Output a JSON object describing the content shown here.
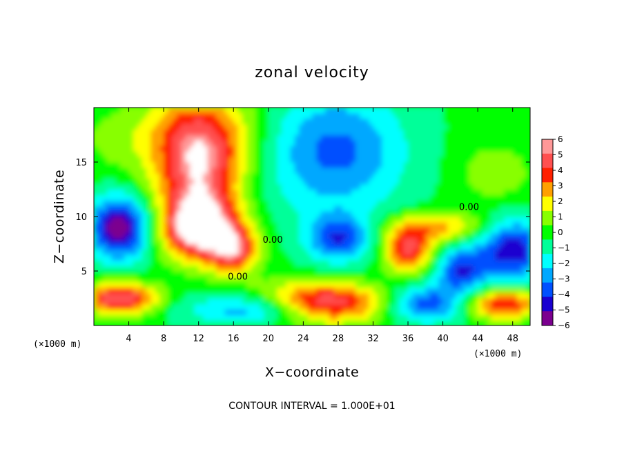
{
  "chart_data": {
    "type": "heatmap",
    "title": "zonal velocity",
    "xlabel": "X−coordinate",
    "ylabel": "Z−coordinate",
    "x_unit_left": "(×1000 m)",
    "x_unit_right": "(×1000 m)",
    "xlim": [
      0,
      50
    ],
    "ylim": [
      0,
      20
    ],
    "x_ticks": [
      4,
      8,
      12,
      16,
      20,
      24,
      28,
      32,
      36,
      40,
      44,
      48
    ],
    "x_tick_labels": [
      "4",
      "8",
      "12",
      "16",
      "20",
      "24",
      "28",
      "32",
      "36",
      "40",
      "44",
      "48"
    ],
    "y_ticks": [
      5,
      10,
      15
    ],
    "y_tick_labels": [
      "5",
      "10",
      "15"
    ],
    "colorbar": {
      "min": -6,
      "max": 6,
      "ticks": [
        6,
        5,
        4,
        3,
        2,
        1,
        0,
        -1,
        -2,
        -3,
        -4,
        -5,
        -6
      ],
      "tick_labels": [
        "6",
        "5",
        "4",
        "3",
        "2",
        "1",
        "0",
        "−1",
        "−2",
        "−3",
        "−4",
        "−5",
        "−6"
      ],
      "colors": [
        "#7b008f",
        "#1a00d0",
        "#0050ff",
        "#00a8ff",
        "#00ffff",
        "#00ff99",
        "#00ff00",
        "#88ff00",
        "#ffff00",
        "#ffa000",
        "#ff2000",
        "#ff5050",
        "#ff9898"
      ]
    },
    "contour_labels": [
      "0.00",
      "0.00",
      "0.00"
    ],
    "footer": "CONTOUR INTERVAL = 1.000E+01",
    "features": [
      {
        "x": 12,
        "z": 14,
        "value": 5,
        "sx": 3.5,
        "sy": 3.5
      },
      {
        "x": 12,
        "z": 9,
        "value": 7,
        "sx": 3,
        "sy": 2
      },
      {
        "x": 16,
        "z": 7,
        "value": 5,
        "sx": 2,
        "sy": 1.5
      },
      {
        "x": 12,
        "z": 18,
        "value": 3,
        "sx": 5,
        "sy": 3
      },
      {
        "x": 25,
        "z": 16,
        "value": -2,
        "sx": 5,
        "sy": 4
      },
      {
        "x": 30,
        "z": 16,
        "value": -2,
        "sx": 5,
        "sy": 4
      },
      {
        "x": 28,
        "z": 8,
        "value": -4,
        "sx": 2.5,
        "sy": 1.5
      },
      {
        "x": 26,
        "z": 2,
        "value": 7,
        "sx": 5,
        "sy": 1.3
      },
      {
        "x": 20,
        "z": 1.5,
        "value": -4,
        "sx": 6,
        "sy": 1
      },
      {
        "x": 3,
        "z": 9,
        "value": -6,
        "sx": 2.5,
        "sy": 2
      },
      {
        "x": 3,
        "z": 2.5,
        "value": 6,
        "sx": 3,
        "sy": 1
      },
      {
        "x": 36,
        "z": 7,
        "value": 5,
        "sx": 2,
        "sy": 1.5
      },
      {
        "x": 40,
        "z": 9,
        "value": 3,
        "sx": 4,
        "sy": 1
      },
      {
        "x": 48,
        "z": 7,
        "value": -5,
        "sx": 3,
        "sy": 2
      },
      {
        "x": 47,
        "z": 2,
        "value": 5,
        "sx": 3,
        "sy": 1
      },
      {
        "x": 38,
        "z": 2,
        "value": -4,
        "sx": 3,
        "sy": 1.2
      },
      {
        "x": 42,
        "z": 5,
        "value": -4,
        "sx": 2,
        "sy": 1.5
      },
      {
        "x": 46,
        "z": 14,
        "value": 1.5,
        "sx": 3,
        "sy": 2
      },
      {
        "x": 2,
        "z": 17,
        "value": 0.8,
        "sx": 3,
        "sy": 2
      }
    ],
    "grid": false
  }
}
